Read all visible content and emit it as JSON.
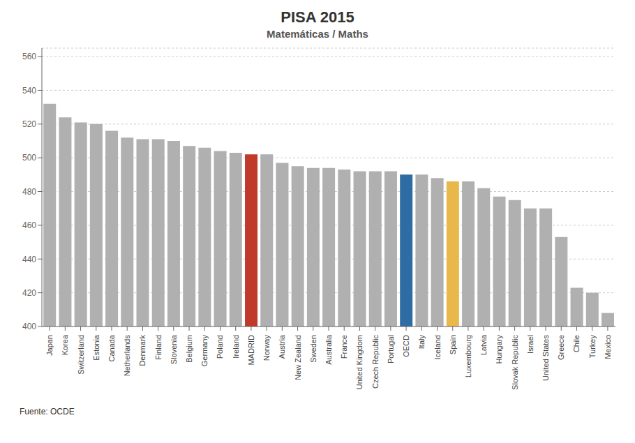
{
  "chart_data": {
    "type": "bar",
    "title": "PISA 2015",
    "subtitle": "Matemáticas / Maths",
    "annotations": [
      "Fuente: OCDE"
    ],
    "categories": [
      "Japan",
      "Korea",
      "Switzerland",
      "Estonia",
      "Canada",
      "Netherlands",
      "Denmark",
      "Finland",
      "Slovenia",
      "Belgium",
      "Germany",
      "Poland",
      "Ireland",
      "MADRID",
      "Norway",
      "Austria",
      "New Zealand",
      "Sweden",
      "Australia",
      "France",
      "United Kingdom",
      "Czech Republic",
      "Portugal",
      "OECD",
      "Italy",
      "Iceland",
      "Spain",
      "Luxembourg",
      "Latvia",
      "Hungary",
      "Slovak Republic",
      "Israel",
      "United States",
      "Greece",
      "Chile",
      "Turkey",
      "Mexico"
    ],
    "values": [
      532,
      524,
      521,
      520,
      516,
      512,
      511,
      511,
      510,
      507,
      506,
      504,
      503,
      502,
      502,
      497,
      495,
      494,
      494,
      493,
      492,
      492,
      492,
      490,
      490,
      488,
      486,
      486,
      482,
      477,
      475,
      470,
      470,
      453,
      423,
      420,
      408
    ],
    "colors": [
      "#b0b0b0",
      "#b0b0b0",
      "#b0b0b0",
      "#b0b0b0",
      "#b0b0b0",
      "#b0b0b0",
      "#b0b0b0",
      "#b0b0b0",
      "#b0b0b0",
      "#b0b0b0",
      "#b0b0b0",
      "#b0b0b0",
      "#b0b0b0",
      "#c0392b",
      "#b0b0b0",
      "#b0b0b0",
      "#b0b0b0",
      "#b0b0b0",
      "#b0b0b0",
      "#b0b0b0",
      "#b0b0b0",
      "#b0b0b0",
      "#b0b0b0",
      "#2e6da4",
      "#b0b0b0",
      "#b0b0b0",
      "#e8b84b",
      "#b0b0b0",
      "#b0b0b0",
      "#b0b0b0",
      "#b0b0b0",
      "#b0b0b0",
      "#b0b0b0",
      "#b0b0b0",
      "#b0b0b0",
      "#b0b0b0",
      "#b0b0b0"
    ],
    "ylim": [
      400,
      565
    ],
    "yticks": [
      400,
      420,
      440,
      460,
      480,
      500,
      520,
      540,
      560
    ],
    "grid": true
  }
}
